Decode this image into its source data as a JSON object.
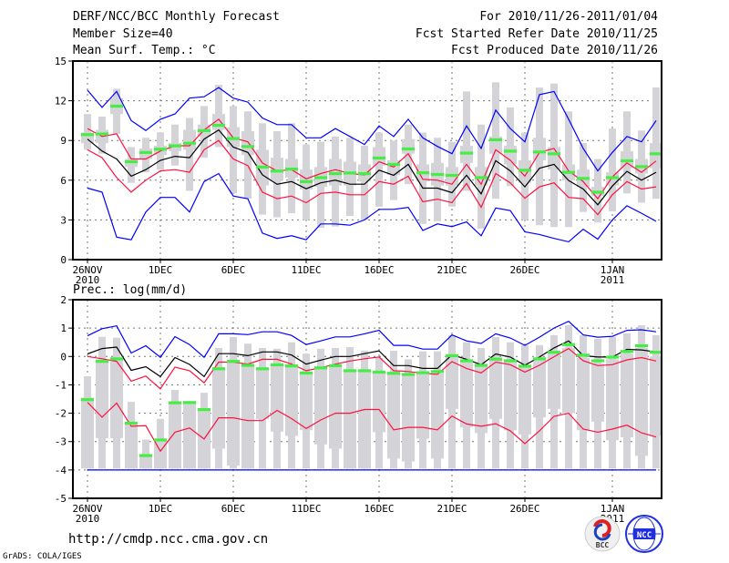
{
  "header": {
    "title": "DERF/NCC/BCC Monthly Forecast",
    "member_size": "Member Size=40",
    "variable": "Mean Surf. Temp.: °C",
    "period": "For 2010/11/26-2011/01/04",
    "start_date": "Fcst Started Refer Date 2010/11/25",
    "produced_date": "Fcst Produced Date 2010/11/26"
  },
  "footer": {
    "url": "http://cmdp.ncc.cma.gov.cn",
    "credit": "GrADS: COLA/IGES",
    "logo_bcc": "BCC",
    "logo_ncc": "NCC"
  },
  "colors": {
    "max_min": "#0000ff",
    "spread": "#ff1040",
    "mean": "#000000",
    "marker": "#44ee44",
    "box": "#d4d4d8",
    "grid": "#777777"
  },
  "chart_data": [
    {
      "type": "box-line",
      "title": "Mean Surf. Temp.: °C",
      "ylabel": "",
      "ylim": [
        0,
        15
      ],
      "yticks": [
        "0",
        "3",
        "6",
        "9",
        "12",
        "15"
      ],
      "xticks": [
        "26NOV",
        "1DEC",
        "6DEC",
        "11DEC",
        "16DEC",
        "21DEC",
        "26DEC",
        "1JAN"
      ],
      "xtick_years": {
        "26NOV": "2010",
        "1JAN": "2011"
      },
      "days": 40,
      "grid": true,
      "series": {
        "max": [
          12.8,
          11.5,
          12.7,
          10.5,
          9.75,
          10.6,
          11.0,
          12.2,
          12.3,
          13.0,
          12.2,
          11.9,
          10.7,
          10.2,
          10.2,
          9.2,
          9.2,
          9.9,
          9.3,
          8.7,
          10.1,
          9.3,
          10.6,
          9.2,
          8.55,
          8.0,
          10.1,
          8.4,
          11.3,
          9.9,
          8.9,
          12.46,
          12.7,
          10.6,
          8.4,
          6.7,
          8.1,
          9.3,
          8.9,
          10.5
        ],
        "min": [
          5.4,
          5.1,
          1.7,
          1.5,
          3.6,
          4.7,
          4.7,
          3.6,
          5.9,
          6.5,
          4.8,
          4.6,
          2.0,
          1.6,
          1.8,
          1.5,
          2.7,
          2.7,
          2.6,
          3.0,
          3.8,
          3.8,
          3.95,
          2.2,
          2.7,
          2.5,
          2.85,
          1.8,
          3.9,
          3.7,
          2.1,
          1.9,
          1.6,
          1.35,
          2.3,
          1.55,
          3.0,
          4.07,
          3.5,
          2.9
        ],
        "mean": [
          9.1,
          8.2,
          7.6,
          6.3,
          6.8,
          7.5,
          7.8,
          7.7,
          9.1,
          9.8,
          8.5,
          8.1,
          6.4,
          5.7,
          5.9,
          5.35,
          5.8,
          6.0,
          5.7,
          5.7,
          6.76,
          6.37,
          7.2,
          5.4,
          5.4,
          5.06,
          6.37,
          4.97,
          7.47,
          6.7,
          5.5,
          6.9,
          7.2,
          5.98,
          5.33,
          4.14,
          5.56,
          6.67,
          6.0,
          6.6
        ],
        "upper_spread": [
          9.9,
          9.3,
          9.5,
          7.6,
          7.6,
          8.2,
          8.6,
          8.6,
          9.8,
          10.6,
          9.2,
          8.9,
          7.3,
          6.7,
          6.8,
          6.1,
          6.5,
          6.8,
          6.5,
          6.4,
          7.4,
          7.0,
          8.0,
          6.07,
          6.0,
          5.7,
          7.2,
          5.7,
          8.3,
          7.5,
          6.3,
          8.1,
          8.4,
          6.7,
          5.9,
          4.6,
          6.25,
          7.3,
          6.6,
          7.45
        ],
        "lower_spread": [
          8.3,
          7.7,
          6.2,
          5.1,
          6.0,
          6.7,
          6.8,
          6.6,
          8.3,
          9.0,
          7.6,
          7.1,
          5.1,
          4.6,
          4.8,
          4.3,
          5.0,
          5.1,
          4.9,
          4.9,
          5.9,
          5.7,
          6.3,
          4.37,
          4.57,
          4.3,
          5.75,
          3.95,
          6.5,
          5.8,
          4.64,
          5.5,
          5.8,
          4.7,
          4.6,
          3.4,
          4.9,
          5.9,
          5.33,
          5.5
        ],
        "marker": [
          9.45,
          9.5,
          11.6,
          7.4,
          8.1,
          8.35,
          8.6,
          8.8,
          9.75,
          10.15,
          9.15,
          8.55,
          7.0,
          6.7,
          6.85,
          5.9,
          6.2,
          6.5,
          6.55,
          6.5,
          7.68,
          7.2,
          8.37,
          6.57,
          6.44,
          6.37,
          8.05,
          6.2,
          9.06,
          8.2,
          6.76,
          8.14,
          8.0,
          6.6,
          6.14,
          5.1,
          6.2,
          7.47,
          7.03,
          8.0
        ],
        "range": [
          [
            8.3,
            11.0
          ],
          [
            8.0,
            10.8
          ],
          [
            9.5,
            12.9
          ],
          [
            5.8,
            8.5
          ],
          [
            6.6,
            9.2
          ],
          [
            6.8,
            9.6
          ],
          [
            7.1,
            10.2
          ],
          [
            5.2,
            10.7
          ],
          [
            7.7,
            11.6
          ],
          [
            8.5,
            13.2
          ],
          [
            5.0,
            11.6
          ],
          [
            4.6,
            11.2
          ],
          [
            3.4,
            10.3
          ],
          [
            3.2,
            9.7
          ],
          [
            3.5,
            10.3
          ],
          [
            3.0,
            8.7
          ],
          [
            2.4,
            8.9
          ],
          [
            2.5,
            9.3
          ],
          [
            3.3,
            9.2
          ],
          [
            3.0,
            8.6
          ],
          [
            4.0,
            9.6
          ],
          [
            4.5,
            9.0
          ],
          [
            5.7,
            10.2
          ],
          [
            2.7,
            9.6
          ],
          [
            2.9,
            9.2
          ],
          [
            4.0,
            8.9
          ],
          [
            5.2,
            12.7
          ],
          [
            2.35,
            10.2
          ],
          [
            4.6,
            13.4
          ],
          [
            5.56,
            11.5
          ],
          [
            3.0,
            9.6
          ],
          [
            2.6,
            13.0
          ],
          [
            2.46,
            13.3
          ],
          [
            2.46,
            11.2
          ],
          [
            3.6,
            8.8
          ],
          [
            2.8,
            7.6
          ],
          [
            3.65,
            9.9
          ],
          [
            5.0,
            11.2
          ],
          [
            4.3,
            9.75
          ],
          [
            4.6,
            13.0
          ]
        ],
        "box": [
          [
            8.8,
            9.6
          ],
          [
            8.8,
            9.8
          ],
          [
            11.0,
            12.2
          ],
          [
            7.0,
            7.6
          ],
          [
            7.6,
            8.4
          ],
          [
            7.9,
            8.6
          ],
          [
            8.2,
            8.8
          ],
          [
            8.3,
            9.8
          ],
          [
            9.3,
            10.2
          ],
          [
            9.8,
            11.0
          ],
          [
            8.5,
            10.0
          ],
          [
            7.9,
            9.7
          ],
          [
            5.6,
            8.3
          ],
          [
            6.0,
            7.7
          ],
          [
            6.2,
            7.6
          ],
          [
            5.3,
            6.8
          ],
          [
            5.5,
            7.0
          ],
          [
            5.6,
            7.6
          ],
          [
            5.6,
            7.4
          ],
          [
            5.9,
            7.2
          ],
          [
            7.1,
            8.5
          ],
          [
            6.4,
            7.5
          ],
          [
            8.0,
            9.1
          ],
          [
            5.9,
            7.2
          ],
          [
            5.6,
            7.3
          ],
          [
            5.6,
            7.0
          ],
          [
            7.3,
            8.6
          ],
          [
            5.6,
            7.0
          ],
          [
            8.0,
            9.3
          ],
          [
            7.2,
            8.6
          ],
          [
            5.8,
            7.5
          ],
          [
            7.5,
            9.2
          ],
          [
            6.8,
            8.5
          ],
          [
            6.0,
            7.2
          ],
          [
            5.5,
            6.8
          ],
          [
            4.8,
            5.5
          ],
          [
            5.6,
            6.6
          ],
          [
            6.9,
            8.2
          ],
          [
            6.5,
            7.6
          ],
          [
            6.9,
            8.8
          ]
        ]
      }
    },
    {
      "type": "box-line",
      "title": "Prec.: log(mm/d)",
      "ylabel": "",
      "ylim": [
        -5,
        2
      ],
      "yticks": [
        "-5",
        "-4",
        "-3",
        "-2",
        "-1",
        "0",
        "1",
        "2"
      ],
      "xticks": [
        "26NOV",
        "1DEC",
        "6DEC",
        "11DEC",
        "16DEC",
        "21DEC",
        "26DEC",
        "1JAN"
      ],
      "xtick_years": {
        "26NOV": "2010",
        "1JAN": "2011"
      },
      "days": 40,
      "grid": true,
      "series": {
        "max": [
          0.73,
          0.98,
          1.08,
          0.12,
          0.38,
          -0.03,
          0.7,
          0.42,
          -0.03,
          0.8,
          0.8,
          0.77,
          0.87,
          0.87,
          0.74,
          0.42,
          0.55,
          0.69,
          0.69,
          0.8,
          0.92,
          0.39,
          0.39,
          0.26,
          0.26,
          0.76,
          0.55,
          0.46,
          0.8,
          0.65,
          0.39,
          0.68,
          1.0,
          1.24,
          0.76,
          0.68,
          0.71,
          0.92,
          0.94,
          0.87
        ],
        "min": [
          -4,
          -4,
          -4,
          -4,
          -4,
          -4,
          -4,
          -4,
          -4,
          -4,
          -4,
          -4,
          -4,
          -4,
          -4,
          -4,
          -4,
          -4,
          -4,
          -4,
          -4,
          -4,
          -4,
          -4,
          -4,
          -4,
          -4,
          -4,
          -4,
          -4,
          -4,
          -4,
          -4,
          -4,
          -4,
          -4,
          -4,
          -4,
          -4,
          -4
        ],
        "mean": [
          0.09,
          0.28,
          0.33,
          -0.49,
          -0.36,
          -0.71,
          -0.04,
          -0.28,
          -0.71,
          0.1,
          0.1,
          0.03,
          0.16,
          0.16,
          0.05,
          -0.27,
          -0.13,
          0,
          0,
          0.1,
          0.2,
          -0.32,
          -0.32,
          -0.42,
          -0.42,
          0.06,
          -0.1,
          -0.29,
          0.09,
          -0.02,
          -0.31,
          -0.02,
          0.3,
          0.55,
          0.03,
          -0.02,
          -0.02,
          0.25,
          0.23,
          0.16
        ],
        "upper_spread": [
          0,
          -0.08,
          -0.17,
          -0.87,
          -0.69,
          -1.14,
          -0.38,
          -0.5,
          -0.93,
          -0.2,
          -0.2,
          -0.27,
          -0.1,
          -0.1,
          -0.27,
          -0.5,
          -0.4,
          -0.27,
          -0.16,
          -0.08,
          -0.02,
          -0.5,
          -0.53,
          -0.59,
          -0.63,
          -0.18,
          -0.42,
          -0.58,
          -0.2,
          -0.29,
          -0.55,
          -0.31,
          -0.01,
          0.28,
          -0.15,
          -0.32,
          -0.29,
          -0.12,
          -0.04,
          -0.16
        ],
        "lower_spread": [
          -1.62,
          -2.14,
          -1.64,
          -2.46,
          -2.44,
          -3.34,
          -2.67,
          -2.52,
          -2.91,
          -2.16,
          -2.16,
          -2.26,
          -2.26,
          -1.9,
          -2.19,
          -2.54,
          -2.24,
          -2.0,
          -2.0,
          -1.87,
          -1.87,
          -2.59,
          -2.5,
          -2.5,
          -2.59,
          -2.1,
          -2.38,
          -2.46,
          -2.37,
          -2.62,
          -3.07,
          -2.62,
          -2.11,
          -2.0,
          -2.56,
          -2.67,
          -2.56,
          -2.42,
          -2.69,
          -2.84
        ],
        "marker": [
          -1.52,
          -0.17,
          -0.08,
          -2.35,
          -3.49,
          -2.94,
          -1.63,
          -1.62,
          -1.87,
          -0.43,
          -0.17,
          -0.31,
          -0.43,
          -0.29,
          -0.33,
          -0.58,
          -0.4,
          -0.32,
          -0.5,
          -0.5,
          -0.55,
          -0.59,
          -0.63,
          -0.57,
          -0.53,
          0.03,
          -0.15,
          -0.31,
          -0.09,
          -0.15,
          -0.34,
          -0.08,
          0.15,
          0.42,
          0.05,
          -0.15,
          -0.02,
          0.18,
          0.38,
          0.15
        ],
        "range": [
          [
            -3.95,
            -0.7
          ],
          [
            -3.95,
            0.69
          ],
          [
            -3.95,
            0.66
          ],
          [
            -3.95,
            -1.6
          ],
          [
            -3.95,
            -2.93
          ],
          [
            -3.95,
            -2.2
          ],
          [
            -3.95,
            -1.18
          ],
          [
            -3.95,
            -1.6
          ],
          [
            -3.95,
            -1.28
          ],
          [
            -3.95,
            0.3
          ],
          [
            -3.95,
            0.68
          ],
          [
            -3.95,
            0.45
          ],
          [
            -3.95,
            0.3
          ],
          [
            -3.95,
            0.27
          ],
          [
            -3.95,
            0.5
          ],
          [
            -3.95,
            0.1
          ],
          [
            -3.95,
            0.27
          ],
          [
            -3.95,
            0.3
          ],
          [
            -3.95,
            0.33
          ],
          [
            -3.95,
            0.2
          ],
          [
            -3.95,
            -0.05
          ],
          [
            -3.95,
            0.2
          ],
          [
            -3.95,
            -0.1
          ],
          [
            -3.95,
            0.18
          ],
          [
            -3.95,
            0.18
          ],
          [
            -3.95,
            0.75
          ],
          [
            -3.95,
            0.5
          ],
          [
            -3.95,
            0.3
          ],
          [
            -3.95,
            0.68
          ],
          [
            -3.95,
            0.5
          ],
          [
            -3.95,
            0.4
          ],
          [
            -3.95,
            0.4
          ],
          [
            -3.95,
            0.75
          ],
          [
            -3.95,
            1.1
          ],
          [
            -3.95,
            0.75
          ],
          [
            -3.95,
            0.62
          ],
          [
            -3.95,
            0.7
          ],
          [
            -3.95,
            0.82
          ],
          [
            -3.95,
            1.1
          ],
          [
            -3.95,
            0.75
          ]
        ],
        "box": [
          [
            -3.95,
            -1.45
          ],
          [
            -2.88,
            -0.1
          ],
          [
            -2.88,
            -0.1
          ],
          [
            -3.95,
            -2.3
          ],
          [
            -3.95,
            -3.45
          ],
          [
            -3.95,
            -2.9
          ],
          [
            -3.95,
            -1.6
          ],
          [
            -3.95,
            -1.6
          ],
          [
            -3.95,
            -1.85
          ],
          [
            -3.25,
            -0.4
          ],
          [
            -3.85,
            -0.15
          ],
          [
            -3.95,
            -0.3
          ],
          [
            -2.2,
            -0.4
          ],
          [
            -2.65,
            -0.25
          ],
          [
            -2.8,
            -0.35
          ],
          [
            -2.6,
            -0.55
          ],
          [
            -3.1,
            -0.4
          ],
          [
            -3.25,
            -0.3
          ],
          [
            -3.95,
            -0.5
          ],
          [
            -3.95,
            -0.5
          ],
          [
            -2.67,
            -0.6
          ],
          [
            -3.6,
            -0.6
          ],
          [
            -3.7,
            -0.65
          ],
          [
            -2.9,
            -0.6
          ],
          [
            -3.6,
            -0.6
          ],
          [
            -1.85,
            0
          ],
          [
            -2.5,
            -0.2
          ],
          [
            -2.7,
            -0.35
          ],
          [
            -2.2,
            -0.1
          ],
          [
            -2.6,
            -0.2
          ],
          [
            -2.75,
            -0.35
          ],
          [
            -2.15,
            -0.1
          ],
          [
            -1.85,
            0.1
          ],
          [
            -2.0,
            0.3
          ],
          [
            -2.6,
            -0.05
          ],
          [
            -2.3,
            -0.25
          ],
          [
            -2.95,
            -0.1
          ],
          [
            -2.85,
            0.1
          ],
          [
            -3.5,
            0.3
          ],
          [
            -2.8,
            0.0
          ]
        ]
      }
    }
  ]
}
